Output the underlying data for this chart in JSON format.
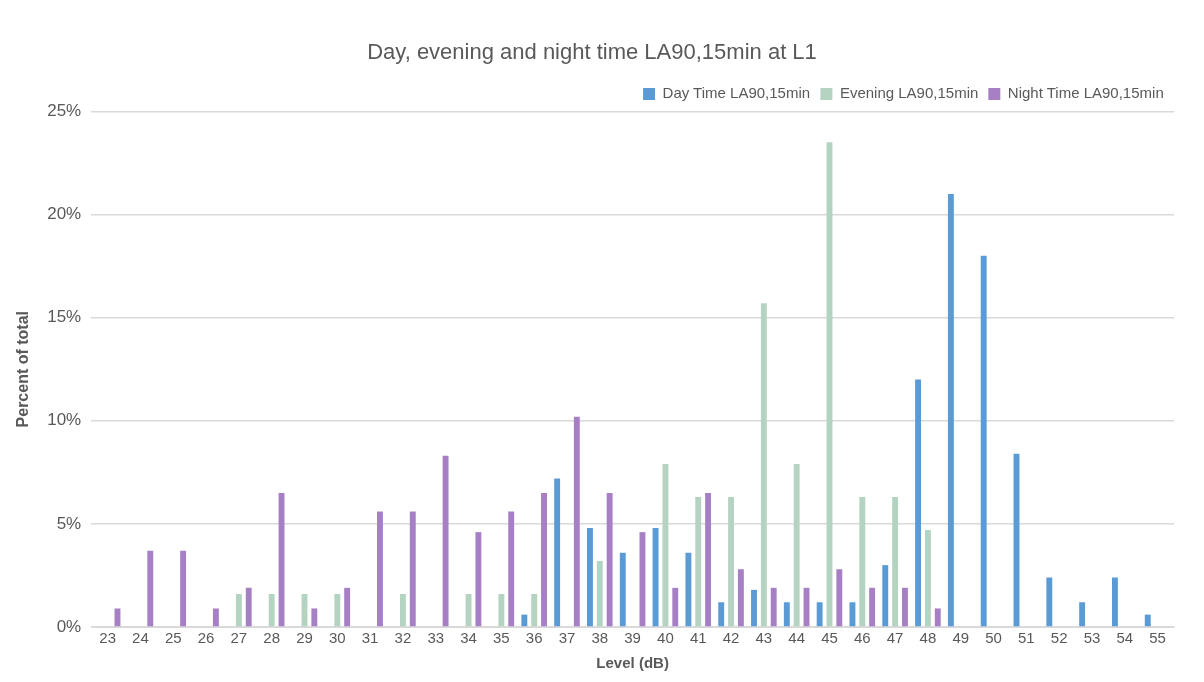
{
  "chart_data": {
    "type": "bar",
    "title": "Day, evening and night time LA90,15min at L1",
    "xlabel": "Level (dB)",
    "ylabel": "Percent of total",
    "categories": [
      "23",
      "24",
      "25",
      "26",
      "27",
      "28",
      "29",
      "30",
      "31",
      "32",
      "33",
      "34",
      "35",
      "36",
      "37",
      "38",
      "39",
      "40",
      "41",
      "42",
      "43",
      "44",
      "45",
      "46",
      "47",
      "48",
      "49",
      "50",
      "51",
      "52",
      "53",
      "54",
      "55"
    ],
    "series": [
      {
        "name": "Day Time LA90,15min",
        "color": "#5b9bd5",
        "values": [
          0,
          0,
          0,
          0,
          0,
          0,
          0,
          0,
          0,
          0,
          0,
          0,
          0,
          0.6,
          7.2,
          4.8,
          3.6,
          4.8,
          3.6,
          1.2,
          1.8,
          1.2,
          1.2,
          1.2,
          3.0,
          12.0,
          21.0,
          18.0,
          8.4,
          2.4,
          1.2,
          2.4,
          0.6
        ]
      },
      {
        "name": "Evening LA90,15min",
        "color": "#b5d3c1",
        "values": [
          0,
          0,
          0,
          0,
          1.6,
          1.6,
          1.6,
          1.6,
          0,
          1.6,
          0,
          1.6,
          1.6,
          1.6,
          0,
          3.2,
          0,
          7.9,
          6.3,
          6.3,
          15.7,
          7.9,
          23.5,
          6.3,
          6.3,
          4.7,
          0,
          0,
          0,
          0,
          0,
          0,
          0
        ]
      },
      {
        "name": "Night Time LA90,15min",
        "color": "#a77fc5",
        "values": [
          0.9,
          3.7,
          3.7,
          0.9,
          1.9,
          6.5,
          0.9,
          1.9,
          5.6,
          5.6,
          8.3,
          4.6,
          5.6,
          6.5,
          10.2,
          6.5,
          4.6,
          1.9,
          6.5,
          2.8,
          1.9,
          1.9,
          2.8,
          1.9,
          1.9,
          0.9,
          0,
          0,
          0,
          0,
          0,
          0,
          0
        ]
      }
    ],
    "ylim": [
      0,
      25
    ],
    "yticks": [
      {
        "value": 0,
        "label": "0%"
      },
      {
        "value": 5,
        "label": "5%"
      },
      {
        "value": 10,
        "label": "10%"
      },
      {
        "value": 15,
        "label": "15%"
      },
      {
        "value": 20,
        "label": "20%"
      },
      {
        "value": 25,
        "label": "25%"
      }
    ],
    "grid": "y",
    "legend": "top right"
  }
}
